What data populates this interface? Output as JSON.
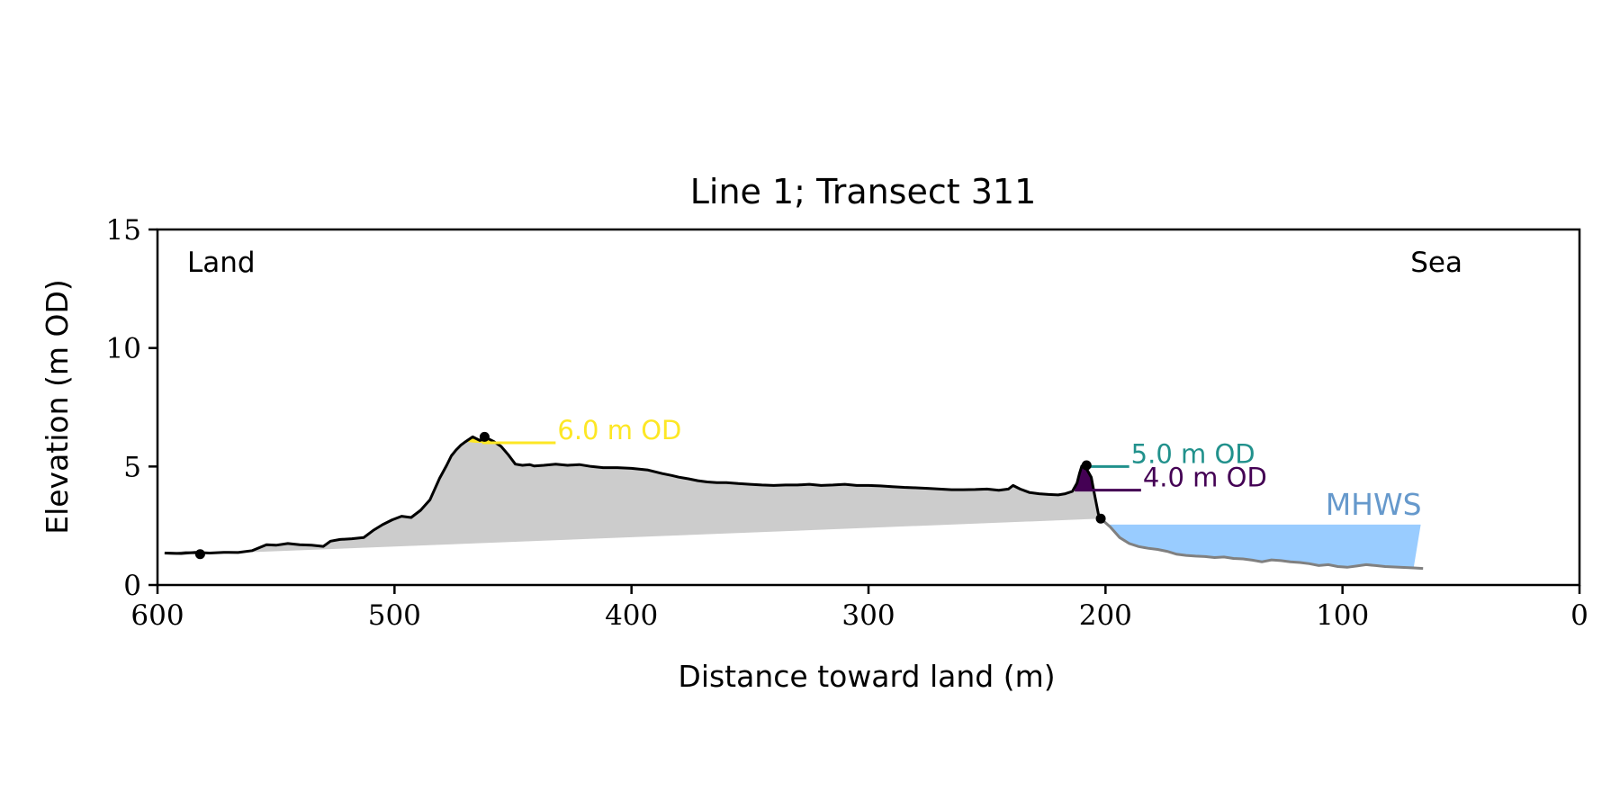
{
  "chart_data": {
    "type": "area",
    "title": "Line 1; Transect 311",
    "xlabel": "Distance toward land (m)",
    "ylabel": "Elevation (m OD)",
    "xlim": [
      600,
      0
    ],
    "ylim": [
      0,
      15
    ],
    "xticks": [
      "600",
      "500",
      "400",
      "300",
      "200",
      "100",
      "0"
    ],
    "yticks": [
      "0",
      "5",
      "10",
      "15"
    ],
    "grid": false,
    "region_labels": {
      "land": "Land",
      "sea": "Sea"
    },
    "colors": {
      "profile": "#000000",
      "profile_outer": "#808080",
      "fill": "#cccccc",
      "sea": "#99ccff",
      "mhws_text": "#6699cc",
      "c6": "#fde725",
      "c5": "#21918c",
      "c4": "#440154"
    },
    "mhws": {
      "label": "MHWS",
      "elevation": 2.55,
      "x_start": 200,
      "x_end": 67
    },
    "profile_landward": {
      "x": [
        597,
        590,
        584,
        578,
        572,
        566,
        560,
        554,
        550,
        545,
        540,
        535,
        530,
        527,
        523,
        518,
        513,
        509,
        505,
        501,
        497,
        493,
        489,
        485,
        481,
        478,
        476,
        474,
        472,
        470,
        467,
        464,
        461,
        458,
        455,
        452,
        449,
        446,
        443,
        441,
        437,
        432,
        427,
        422,
        417,
        412,
        406,
        400,
        393,
        387,
        383,
        380,
        376,
        372,
        368,
        364,
        360,
        355,
        350,
        345,
        340,
        335,
        330,
        325,
        320,
        315,
        310,
        305,
        300,
        295,
        290,
        285,
        280,
        275,
        270,
        265,
        260,
        255,
        250,
        245,
        241,
        239,
        236,
        232,
        228,
        224,
        220,
        217,
        214,
        212,
        211,
        210
      ],
      "y": [
        1.35,
        1.33,
        1.38,
        1.35,
        1.38,
        1.37,
        1.45,
        1.7,
        1.68,
        1.75,
        1.7,
        1.68,
        1.63,
        1.85,
        1.92,
        1.95,
        2.0,
        2.3,
        2.55,
        2.75,
        2.9,
        2.85,
        3.15,
        3.6,
        4.5,
        5.05,
        5.45,
        5.7,
        5.9,
        6.05,
        6.25,
        6.1,
        6.2,
        6.05,
        5.85,
        5.5,
        5.1,
        5.05,
        5.08,
        5.02,
        5.05,
        5.1,
        5.05,
        5.08,
        5.0,
        4.95,
        4.95,
        4.92,
        4.85,
        4.7,
        4.62,
        4.55,
        4.48,
        4.4,
        4.35,
        4.32,
        4.32,
        4.28,
        4.25,
        4.22,
        4.2,
        4.22,
        4.22,
        4.25,
        4.2,
        4.22,
        4.25,
        4.2,
        4.2,
        4.18,
        4.15,
        4.12,
        4.1,
        4.08,
        4.05,
        4.02,
        4.02,
        4.03,
        4.05,
        4.0,
        4.05,
        4.2,
        4.05,
        3.9,
        3.85,
        3.82,
        3.8,
        3.85,
        3.95,
        4.3,
        4.7,
        5.02
      ]
    },
    "profile_front": {
      "x": [
        210,
        208,
        206,
        205,
        204,
        203,
        202
      ],
      "y": [
        5.02,
        4.9,
        4.55,
        4.0,
        3.5,
        3.0,
        2.8
      ]
    },
    "outer_landward": {
      "x": [
        597,
        592,
        588,
        584,
        582
      ],
      "y": [
        1.35,
        1.33,
        1.38,
        1.35,
        1.3
      ]
    },
    "outer_seaward": {
      "x": [
        202,
        198,
        194,
        190,
        186,
        182,
        178,
        174,
        170,
        166,
        162,
        158,
        154,
        150,
        146,
        142,
        138,
        134,
        130,
        126,
        122,
        118,
        114,
        110,
        106,
        102,
        98,
        94,
        90,
        86,
        82,
        78,
        74,
        70,
        66
      ],
      "y": [
        2.8,
        2.45,
        2.0,
        1.75,
        1.62,
        1.55,
        1.5,
        1.42,
        1.3,
        1.25,
        1.22,
        1.2,
        1.16,
        1.18,
        1.12,
        1.1,
        1.05,
        0.98,
        1.06,
        1.03,
        0.98,
        0.95,
        0.9,
        0.82,
        0.86,
        0.78,
        0.75,
        0.8,
        0.86,
        0.82,
        0.78,
        0.76,
        0.74,
        0.72,
        0.7
      ]
    },
    "markers": [
      {
        "x": 582,
        "y": 1.3
      },
      {
        "x": 462,
        "y": 6.25
      },
      {
        "x": 208,
        "y": 5.05
      },
      {
        "x": 202,
        "y": 2.8
      }
    ],
    "baseline": {
      "x": [
        582,
        202
      ],
      "y": [
        1.3,
        2.8
      ]
    },
    "contours": [
      {
        "key": "c6",
        "label": "6.0 m OD",
        "elevation": 6.0,
        "x1": 463,
        "x2": 432
      },
      {
        "key": "c5",
        "label": "5.0 m OD",
        "elevation": 5.0,
        "x1": 209,
        "x2": 190
      },
      {
        "key": "c4",
        "label": "4.0 m OD",
        "elevation": 4.0,
        "x1": 213,
        "x2": 185
      }
    ]
  }
}
